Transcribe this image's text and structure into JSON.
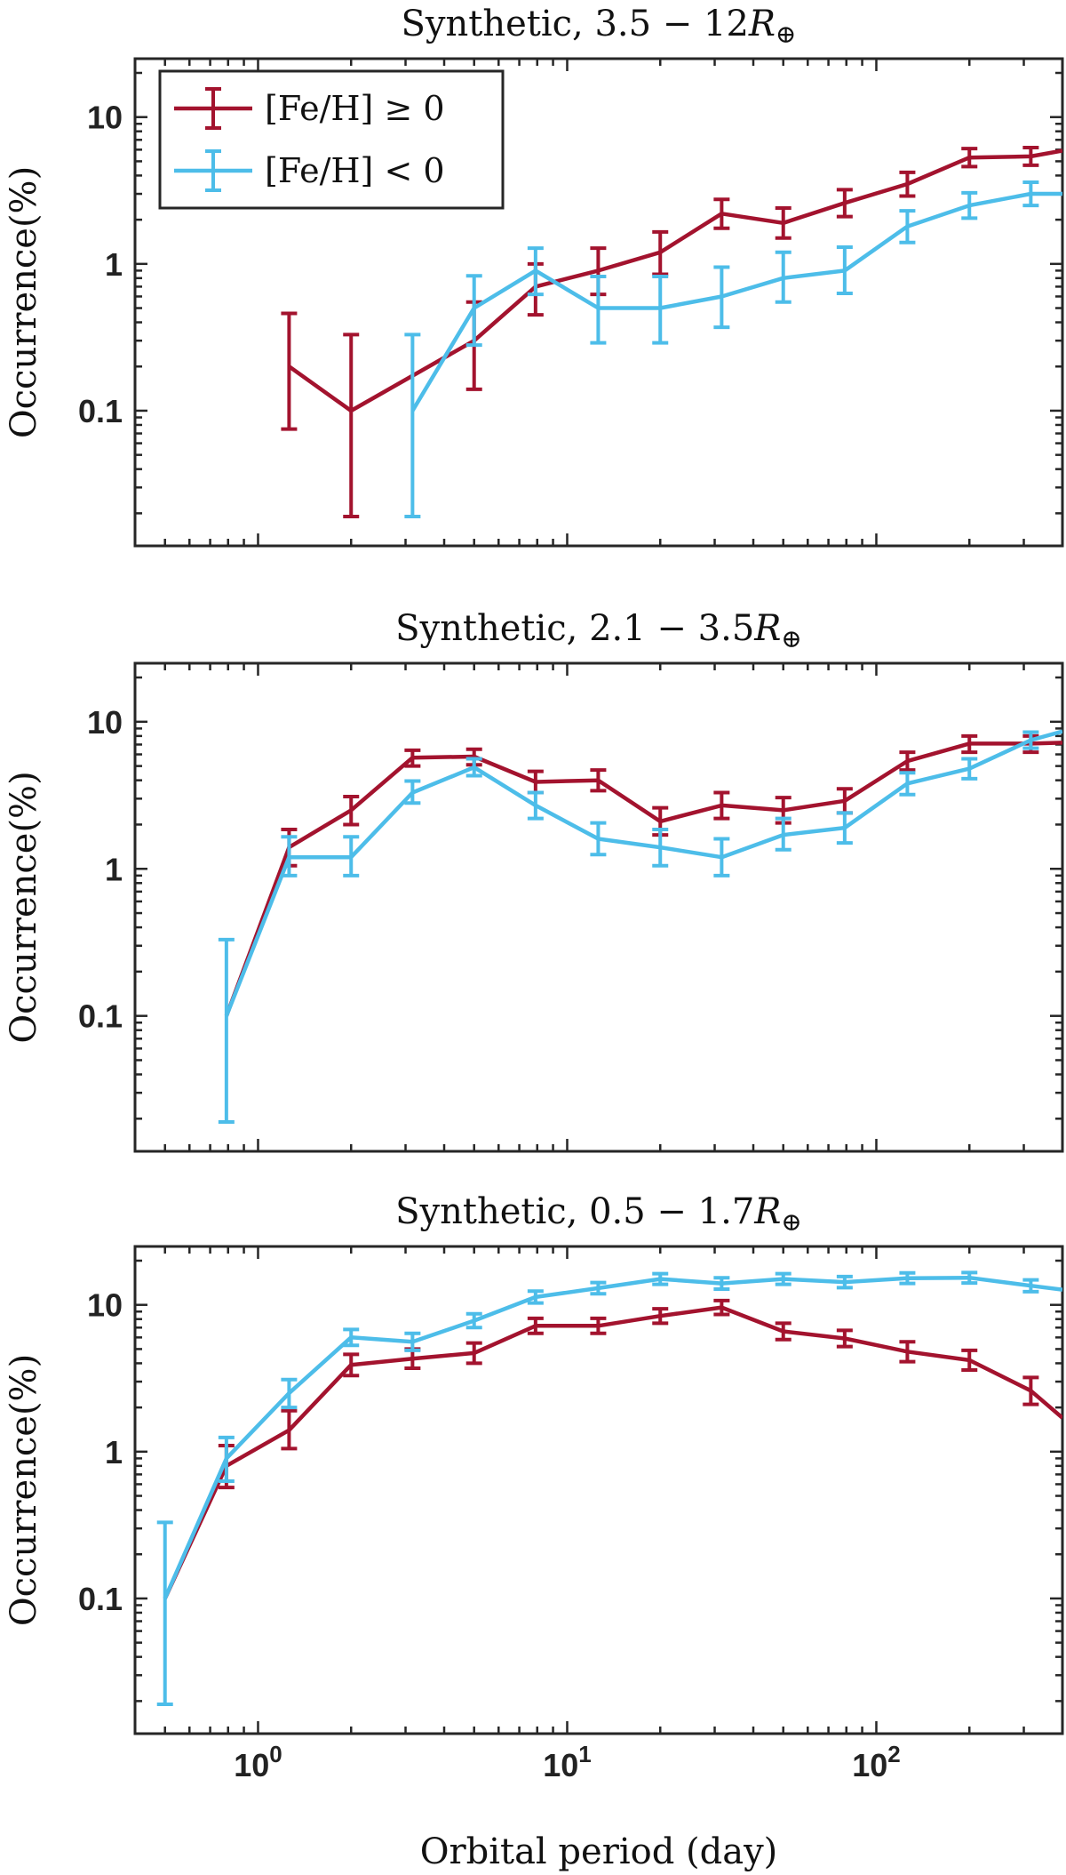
{
  "chart_data": [
    {
      "type": "line",
      "title": "Synthetic, 3.5 − 12R⊕",
      "xlabel": "",
      "ylabel": "Occurrence(%)",
      "xscale": "log",
      "yscale": "log",
      "xlim": [
        0.4,
        400
      ],
      "ylim": [
        0.012,
        25
      ],
      "x_ticks": [
        1,
        10,
        100
      ],
      "y_ticks": [
        0.1,
        1,
        10
      ],
      "y_tick_labels": [
        "0.1",
        "1",
        "10"
      ],
      "legend": {
        "placement": "top-left",
        "entries": [
          "[Fe/H] ≥ 0",
          "[Fe/H] < 0"
        ]
      },
      "series": [
        {
          "name": "[Fe/H] ≥ 0",
          "color": "#a3132e",
          "points": [
            {
              "x": 1.26,
              "y": 0.2,
              "lo": 0.075,
              "hi": 0.46
            },
            {
              "x": 2.0,
              "y": 0.1,
              "lo": 0.019,
              "hi": 0.33
            },
            {
              "x": 5.0,
              "y": 0.3,
              "lo": 0.14,
              "hi": 0.55
            },
            {
              "x": 7.9,
              "y": 0.7,
              "lo": 0.45,
              "hi": 1.0
            },
            {
              "x": 12.6,
              "y": 0.9,
              "lo": 0.62,
              "hi": 1.28
            },
            {
              "x": 20,
              "y": 1.2,
              "lo": 0.85,
              "hi": 1.65
            },
            {
              "x": 31.6,
              "y": 2.2,
              "lo": 1.75,
              "hi": 2.75
            },
            {
              "x": 50,
              "y": 1.9,
              "lo": 1.5,
              "hi": 2.4
            },
            {
              "x": 79,
              "y": 2.6,
              "lo": 2.1,
              "hi": 3.2
            },
            {
              "x": 126,
              "y": 3.5,
              "lo": 2.9,
              "hi": 4.2
            },
            {
              "x": 200,
              "y": 5.3,
              "lo": 4.6,
              "hi": 6.1
            },
            {
              "x": 316,
              "y": 5.4,
              "lo": 4.7,
              "hi": 6.2
            },
            {
              "x": 400,
              "y": 5.9
            }
          ]
        },
        {
          "name": "[Fe/H] < 0",
          "color": "#4dbde9",
          "points": [
            {
              "x": 3.16,
              "y": 0.1,
              "lo": 0.019,
              "hi": 0.33
            },
            {
              "x": 5.0,
              "y": 0.5,
              "lo": 0.28,
              "hi": 0.83
            },
            {
              "x": 7.9,
              "y": 0.9,
              "lo": 0.62,
              "hi": 1.28
            },
            {
              "x": 12.6,
              "y": 0.5,
              "lo": 0.29,
              "hi": 0.82
            },
            {
              "x": 20,
              "y": 0.5,
              "lo": 0.29,
              "hi": 0.82
            },
            {
              "x": 31.6,
              "y": 0.6,
              "lo": 0.37,
              "hi": 0.95
            },
            {
              "x": 50,
              "y": 0.8,
              "lo": 0.55,
              "hi": 1.2
            },
            {
              "x": 79,
              "y": 0.9,
              "lo": 0.63,
              "hi": 1.3
            },
            {
              "x": 126,
              "y": 1.8,
              "lo": 1.4,
              "hi": 2.3
            },
            {
              "x": 200,
              "y": 2.5,
              "lo": 2.05,
              "hi": 3.05
            },
            {
              "x": 316,
              "y": 3.0,
              "lo": 2.5,
              "hi": 3.6
            },
            {
              "x": 400,
              "y": 3.0
            }
          ]
        }
      ]
    },
    {
      "type": "line",
      "title": "Synthetic, 2.1 − 3.5R⊕",
      "xlabel": "",
      "ylabel": "Occurrence(%)",
      "xscale": "log",
      "yscale": "log",
      "xlim": [
        0.4,
        400
      ],
      "ylim": [
        0.012,
        25
      ],
      "x_ticks": [
        1,
        10,
        100
      ],
      "y_ticks": [
        0.1,
        1,
        10
      ],
      "y_tick_labels": [
        "0.1",
        "1",
        "10"
      ],
      "series": [
        {
          "name": "[Fe/H] ≥ 0",
          "color": "#a3132e",
          "points": [
            {
              "x": 0.79,
              "y": 0.1
            },
            {
              "x": 1.26,
              "y": 1.4,
              "lo": 1.05,
              "hi": 1.85
            },
            {
              "x": 2.0,
              "y": 2.5,
              "lo": 2.0,
              "hi": 3.1
            },
            {
              "x": 3.16,
              "y": 5.7,
              "lo": 5.0,
              "hi": 6.4
            },
            {
              "x": 5.0,
              "y": 5.8,
              "lo": 5.1,
              "hi": 6.5
            },
            {
              "x": 7.9,
              "y": 3.9,
              "lo": 3.3,
              "hi": 4.6
            },
            {
              "x": 12.6,
              "y": 4.0,
              "lo": 3.4,
              "hi": 4.7
            },
            {
              "x": 20,
              "y": 2.1,
              "lo": 1.7,
              "hi": 2.6
            },
            {
              "x": 31.6,
              "y": 2.7,
              "lo": 2.2,
              "hi": 3.3
            },
            {
              "x": 50,
              "y": 2.5,
              "lo": 2.05,
              "hi": 3.05
            },
            {
              "x": 79,
              "y": 2.9,
              "lo": 2.4,
              "hi": 3.5
            },
            {
              "x": 126,
              "y": 5.4,
              "lo": 4.7,
              "hi": 6.2
            },
            {
              "x": 200,
              "y": 7.1,
              "lo": 6.2,
              "hi": 8.0
            },
            {
              "x": 316,
              "y": 7.1,
              "lo": 6.2,
              "hi": 8.0
            },
            {
              "x": 400,
              "y": 7.2
            }
          ]
        },
        {
          "name": "[Fe/H] < 0",
          "color": "#4dbde9",
          "points": [
            {
              "x": 0.79,
              "y": 0.1,
              "lo": 0.019,
              "hi": 0.33
            },
            {
              "x": 1.26,
              "y": 1.2,
              "lo": 0.9,
              "hi": 1.65
            },
            {
              "x": 2.0,
              "y": 1.2,
              "lo": 0.9,
              "hi": 1.65
            },
            {
              "x": 3.16,
              "y": 3.3,
              "lo": 2.8,
              "hi": 3.95
            },
            {
              "x": 5.0,
              "y": 4.9,
              "lo": 4.3,
              "hi": 5.6
            },
            {
              "x": 7.9,
              "y": 2.7,
              "lo": 2.2,
              "hi": 3.3
            },
            {
              "x": 12.6,
              "y": 1.6,
              "lo": 1.25,
              "hi": 2.05
            },
            {
              "x": 20,
              "y": 1.4,
              "lo": 1.05,
              "hi": 1.85
            },
            {
              "x": 31.6,
              "y": 1.2,
              "lo": 0.9,
              "hi": 1.6
            },
            {
              "x": 50,
              "y": 1.7,
              "lo": 1.35,
              "hi": 2.2
            },
            {
              "x": 79,
              "y": 1.9,
              "lo": 1.5,
              "hi": 2.4
            },
            {
              "x": 126,
              "y": 3.8,
              "lo": 3.2,
              "hi": 4.5
            },
            {
              "x": 200,
              "y": 4.8,
              "lo": 4.1,
              "hi": 5.6
            },
            {
              "x": 316,
              "y": 7.5,
              "lo": 6.6,
              "hi": 8.5
            },
            {
              "x": 400,
              "y": 8.6
            }
          ]
        }
      ]
    },
    {
      "type": "line",
      "title": "Synthetic, 0.5 − 1.7R⊕",
      "xlabel": "Orbital period (day)",
      "ylabel": "Occurrence(%)",
      "xscale": "log",
      "yscale": "log",
      "xlim": [
        0.4,
        400
      ],
      "ylim": [
        0.012,
        25
      ],
      "x_ticks": [
        1,
        10,
        100
      ],
      "x_tick_labels": [
        {
          "base": "10",
          "exp": "0"
        },
        {
          "base": "10",
          "exp": "1"
        },
        {
          "base": "10",
          "exp": "2"
        }
      ],
      "y_ticks": [
        0.1,
        1,
        10
      ],
      "y_tick_labels": [
        "0.1",
        "1",
        "10"
      ],
      "series": [
        {
          "name": "[Fe/H] ≥ 0",
          "color": "#a3132e",
          "points": [
            {
              "x": 0.5,
              "y": 0.1
            },
            {
              "x": 0.79,
              "y": 0.8,
              "lo": 0.57,
              "hi": 1.1
            },
            {
              "x": 1.26,
              "y": 1.4,
              "lo": 1.05,
              "hi": 1.9
            },
            {
              "x": 2.0,
              "y": 3.9,
              "lo": 3.3,
              "hi": 4.6
            },
            {
              "x": 3.16,
              "y": 4.3,
              "lo": 3.7,
              "hi": 5.0
            },
            {
              "x": 5.0,
              "y": 4.7,
              "lo": 4.0,
              "hi": 5.5
            },
            {
              "x": 7.9,
              "y": 7.2,
              "lo": 6.4,
              "hi": 8.1
            },
            {
              "x": 12.6,
              "y": 7.2,
              "lo": 6.4,
              "hi": 8.1
            },
            {
              "x": 20,
              "y": 8.4,
              "lo": 7.5,
              "hi": 9.4
            },
            {
              "x": 31.6,
              "y": 9.6,
              "lo": 8.6,
              "hi": 10.7
            },
            {
              "x": 50,
              "y": 6.6,
              "lo": 5.8,
              "hi": 7.5
            },
            {
              "x": 79,
              "y": 5.9,
              "lo": 5.2,
              "hi": 6.7
            },
            {
              "x": 126,
              "y": 4.8,
              "lo": 4.1,
              "hi": 5.6
            },
            {
              "x": 200,
              "y": 4.2,
              "lo": 3.6,
              "hi": 4.9
            },
            {
              "x": 316,
              "y": 2.6,
              "lo": 2.1,
              "hi": 3.2
            },
            {
              "x": 400,
              "y": 1.7
            }
          ]
        },
        {
          "name": "[Fe/H] < 0",
          "color": "#4dbde9",
          "points": [
            {
              "x": 0.5,
              "y": 0.1,
              "lo": 0.019,
              "hi": 0.33
            },
            {
              "x": 0.79,
              "y": 0.9,
              "lo": 0.63,
              "hi": 1.25
            },
            {
              "x": 1.26,
              "y": 2.5,
              "lo": 2.0,
              "hi": 3.1
            },
            {
              "x": 2.0,
              "y": 6.0,
              "lo": 5.3,
              "hi": 6.8
            },
            {
              "x": 3.16,
              "y": 5.6,
              "lo": 4.9,
              "hi": 6.4
            },
            {
              "x": 5.0,
              "y": 7.8,
              "lo": 7.0,
              "hi": 8.7
            },
            {
              "x": 7.9,
              "y": 11.3,
              "lo": 10.3,
              "hi": 12.4
            },
            {
              "x": 12.6,
              "y": 13.0,
              "lo": 11.9,
              "hi": 14.2
            },
            {
              "x": 20,
              "y": 15.0,
              "lo": 13.8,
              "hi": 16.3
            },
            {
              "x": 31.6,
              "y": 14.0,
              "lo": 12.8,
              "hi": 15.3
            },
            {
              "x": 50,
              "y": 15.0,
              "lo": 13.8,
              "hi": 16.3
            },
            {
              "x": 79,
              "y": 14.3,
              "lo": 13.1,
              "hi": 15.6
            },
            {
              "x": 126,
              "y": 15.2,
              "lo": 14.0,
              "hi": 16.5
            },
            {
              "x": 200,
              "y": 15.3,
              "lo": 14.1,
              "hi": 16.6
            },
            {
              "x": 316,
              "y": 13.5,
              "lo": 12.3,
              "hi": 14.8
            },
            {
              "x": 400,
              "y": 12.7
            }
          ]
        }
      ]
    }
  ]
}
